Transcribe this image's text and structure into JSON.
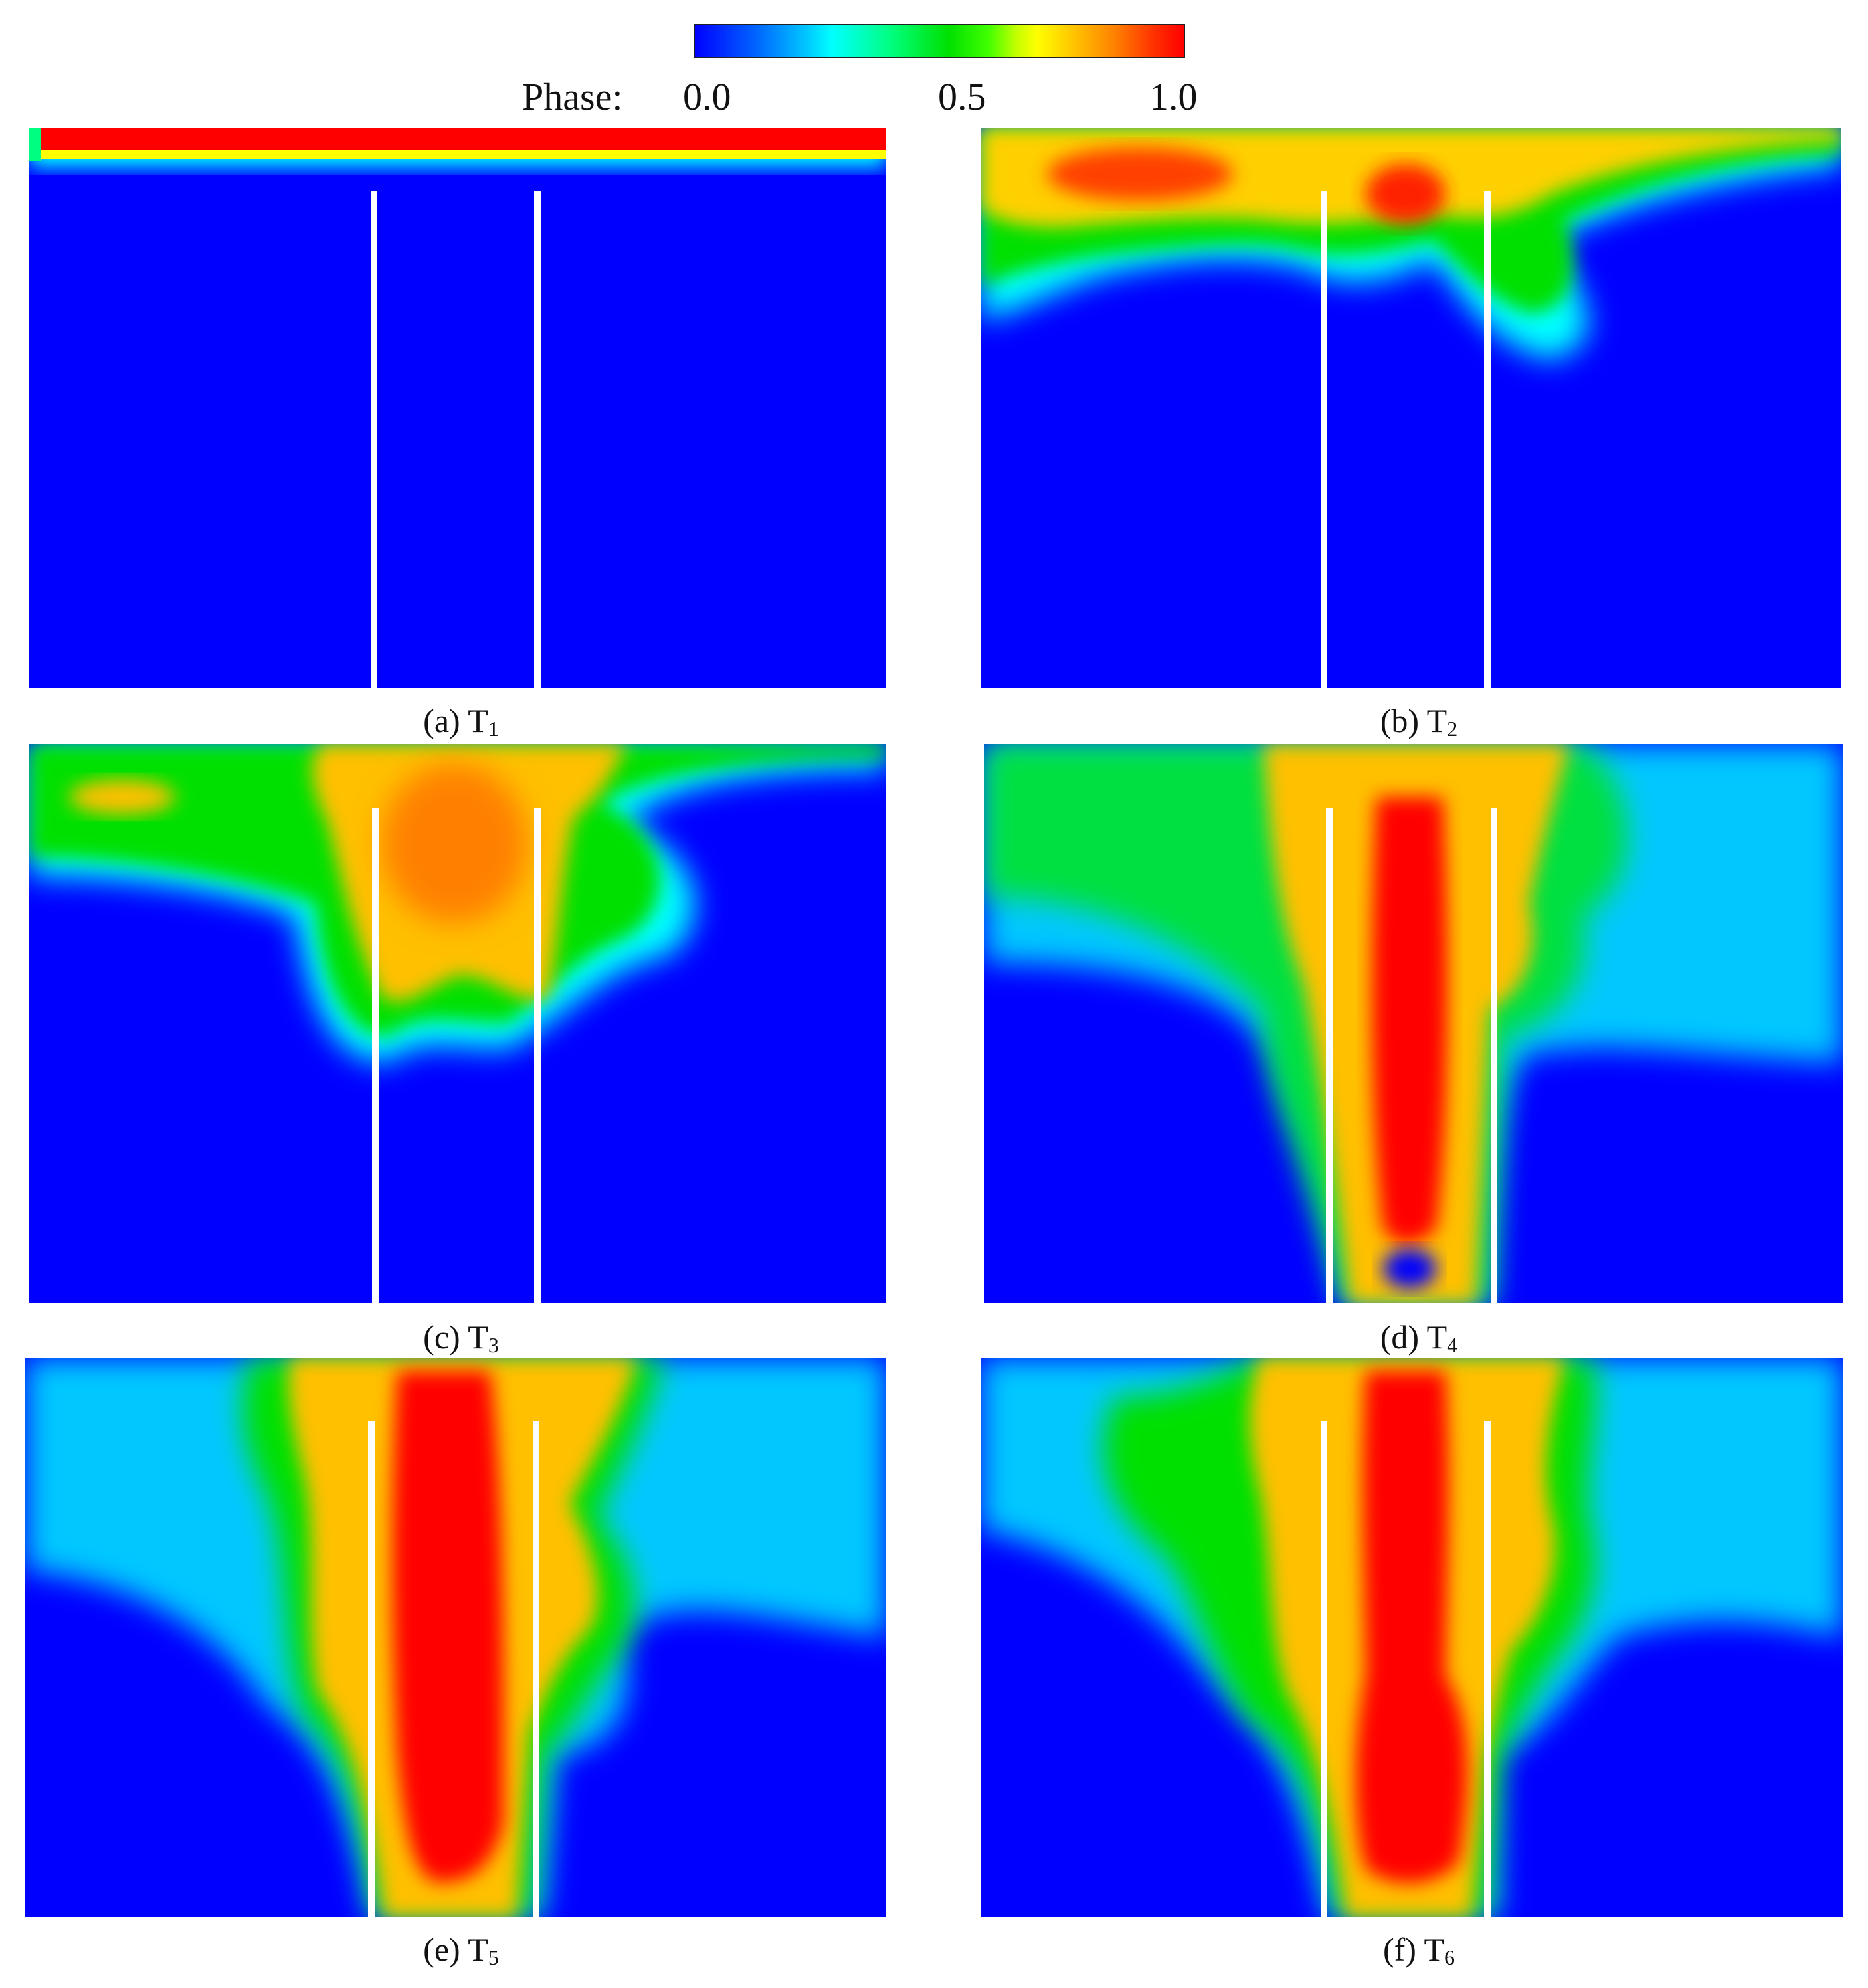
{
  "colorbar": {
    "label": "Phase:",
    "ticks": [
      "0.0",
      "0.5",
      "1.0"
    ],
    "colors": [
      "#0000ff",
      "#00ffff",
      "#00ff00",
      "#ffff00",
      "#ff0000"
    ]
  },
  "panels": [
    {
      "id": "a",
      "caption_prefix": "(a) T",
      "caption_sub": "1"
    },
    {
      "id": "b",
      "caption_prefix": "(b) T",
      "caption_sub": "2"
    },
    {
      "id": "c",
      "caption_prefix": "(c) T",
      "caption_sub": "3"
    },
    {
      "id": "d",
      "caption_prefix": "(d) T",
      "caption_sub": "4"
    },
    {
      "id": "e",
      "caption_prefix": "(e) T",
      "caption_sub": "5"
    },
    {
      "id": "f",
      "caption_prefix": "(f) T",
      "caption_sub": "6"
    }
  ]
}
